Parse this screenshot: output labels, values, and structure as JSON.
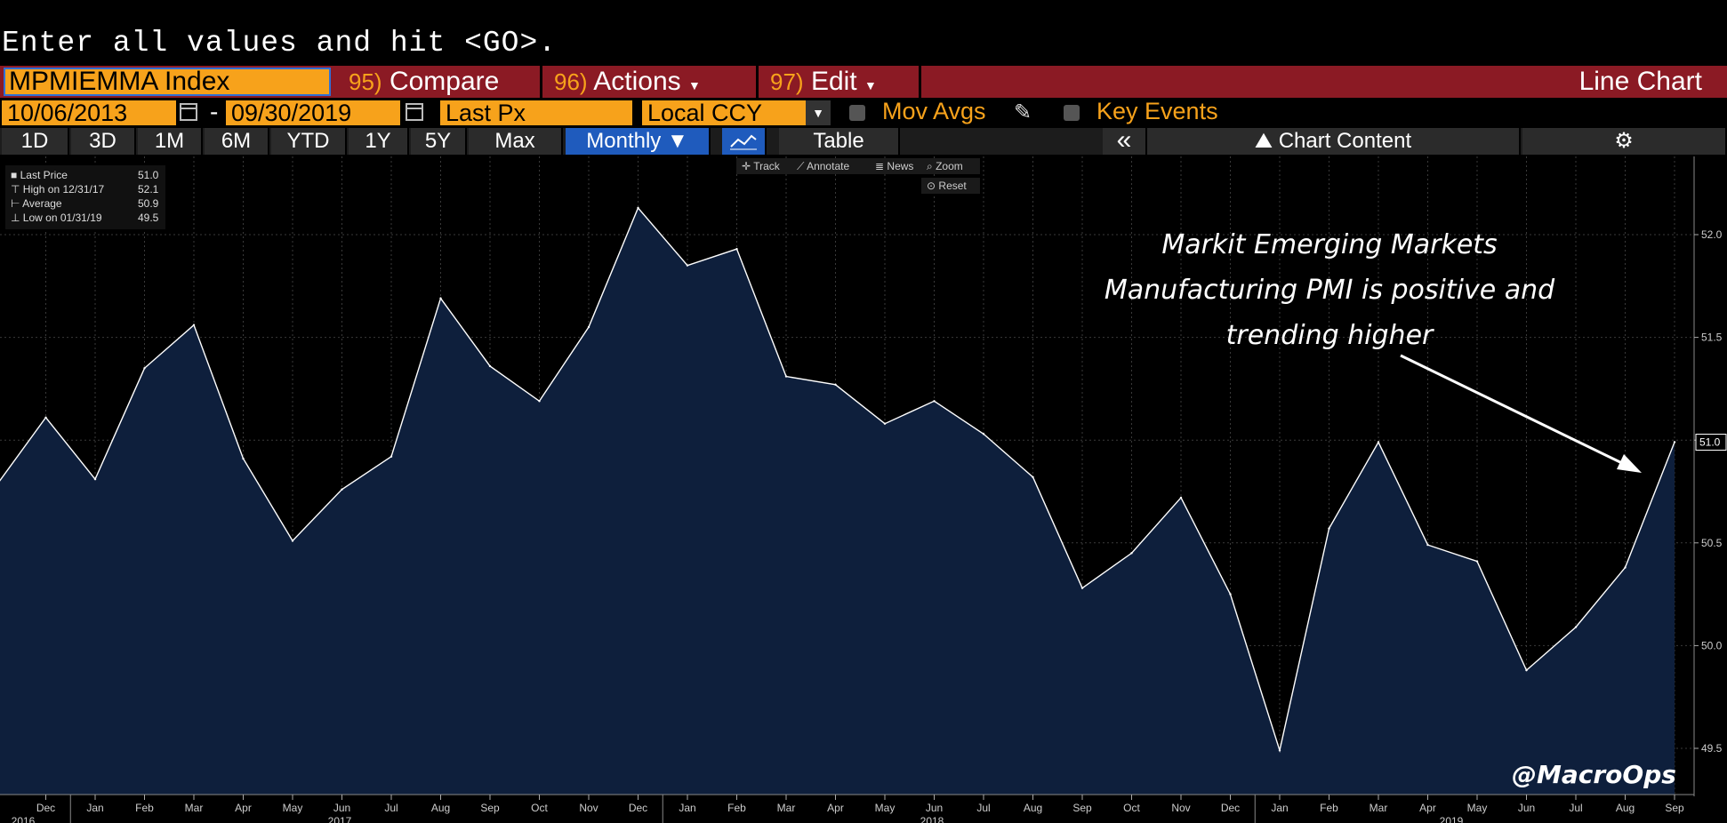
{
  "command_line": "Enter all values and hit <GO>.",
  "toolbar_row1": {
    "ticker": "MPMIEMMA Index",
    "compare": {
      "num": "95",
      "label": "Compare"
    },
    "actions": {
      "num": "96",
      "label": "Actions"
    },
    "edit": {
      "num": "97",
      "label": "Edit"
    },
    "chart_type": "Line Chart"
  },
  "toolbar_row2": {
    "start_date": "10/06/2013",
    "date_sep": "-",
    "end_date": "09/30/2019",
    "field": "Last Px",
    "currency": "Local CCY",
    "mov_avgs": "Mov Avgs",
    "key_events": "Key Events"
  },
  "toolbar_row3": {
    "ranges": [
      "1D",
      "3D",
      "1M",
      "6M",
      "YTD",
      "1Y",
      "5Y",
      "Max"
    ],
    "period": "Monthly ▼",
    "table": "Table",
    "collapse": "«",
    "chart_content": "Chart Content"
  },
  "chart_tools": {
    "track": "Track",
    "annotate": "Annotate",
    "news": "News",
    "zoom": "Zoom",
    "reset": "Reset"
  },
  "legend": {
    "last_label": "Last Price",
    "last_value": "51.0",
    "high_label": "High on 12/31/17",
    "high_value": "52.1",
    "avg_label": "Average",
    "avg_value": "50.9",
    "low_label": "Low on 01/31/19",
    "low_value": "49.5"
  },
  "annotation": [
    "Markit Emerging Markets",
    "Manufacturing PMI is positive and",
    "trending higher"
  ],
  "watermark": "@MacroOps",
  "chart_data": {
    "type": "area",
    "title": "MPMIEMMA Index",
    "series_name": "Last Price",
    "x": [
      "Nov 2016",
      "Dec 2016",
      "Jan 2017",
      "Feb 2017",
      "Mar 2017",
      "Apr 2017",
      "May 2017",
      "Jun 2017",
      "Jul 2017",
      "Aug 2017",
      "Sep 2017",
      "Oct 2017",
      "Nov 2017",
      "Dec 2017",
      "Jan 2018",
      "Feb 2018",
      "Mar 2018",
      "Apr 2018",
      "May 2018",
      "Jun 2018",
      "Jul 2018",
      "Aug 2018",
      "Sep 2018",
      "Oct 2018",
      "Nov 2018",
      "Dec 2018",
      "Jan 2019",
      "Feb 2019",
      "Mar 2019",
      "Apr 2019",
      "May 2019",
      "Jun 2019",
      "Jul 2019",
      "Aug 2019",
      "Sep 2019"
    ],
    "values": [
      50.78,
      51.11,
      50.81,
      51.35,
      51.56,
      50.91,
      50.51,
      50.76,
      50.92,
      51.69,
      51.36,
      51.19,
      51.55,
      52.13,
      51.85,
      51.93,
      51.31,
      51.27,
      51.08,
      51.19,
      51.03,
      50.82,
      50.28,
      50.45,
      50.72,
      50.25,
      49.49,
      50.57,
      50.99,
      50.49,
      50.41,
      49.88,
      50.09,
      50.38,
      50.99
    ],
    "ylim": [
      49.3,
      52.5
    ],
    "yticks": [
      "49.5",
      "50.0",
      "50.5",
      "51.0",
      "51.5",
      "52.0"
    ],
    "xtick_labels": [
      "Dec",
      "Jan",
      "Feb",
      "Mar",
      "Apr",
      "May",
      "Jun",
      "Jul",
      "Aug",
      "Sep",
      "Oct",
      "Nov",
      "Dec",
      "Jan",
      "Feb",
      "Mar",
      "Apr",
      "May",
      "Jun",
      "Jul",
      "Aug",
      "Sep",
      "Oct",
      "Nov",
      "Dec",
      "Jan",
      "Feb",
      "Mar",
      "Apr",
      "May",
      "Jun",
      "Jul",
      "Aug",
      "Sep"
    ],
    "year_labels": [
      "2016",
      "2017",
      "2018",
      "2019"
    ],
    "last_value_label": "51.0",
    "line_color": "#ffffff",
    "fill_color": "#0e1f3c"
  }
}
